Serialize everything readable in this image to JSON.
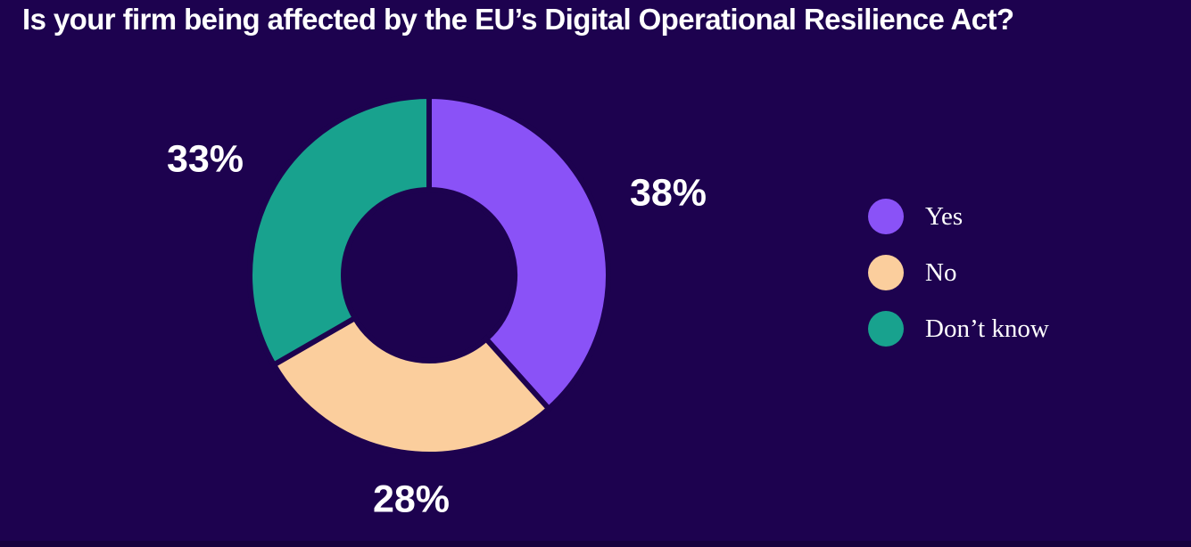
{
  "colors": {
    "background": "#1D024F",
    "bottom_strip": "#17023E",
    "text": "#FFFFFF"
  },
  "chart_data": {
    "type": "pie",
    "variant": "donut",
    "title": "Is your firm being affected by the EU’s Digital Operational Resilience Act?",
    "categories": [
      "Yes",
      "No",
      "Don’t know"
    ],
    "values": [
      38,
      28,
      33
    ],
    "unit": "%",
    "start_angle_deg": 0,
    "direction": "clockwise",
    "legend_position": "right",
    "slices": [
      {
        "label": "Yes",
        "value": 38,
        "display": "38%",
        "color": "#8A52F7"
      },
      {
        "label": "No",
        "value": 28,
        "display": "28%",
        "color": "#FBCE9D"
      },
      {
        "label": "Don’t know",
        "value": 33,
        "display": "33%",
        "color": "#18A28E"
      }
    ]
  }
}
